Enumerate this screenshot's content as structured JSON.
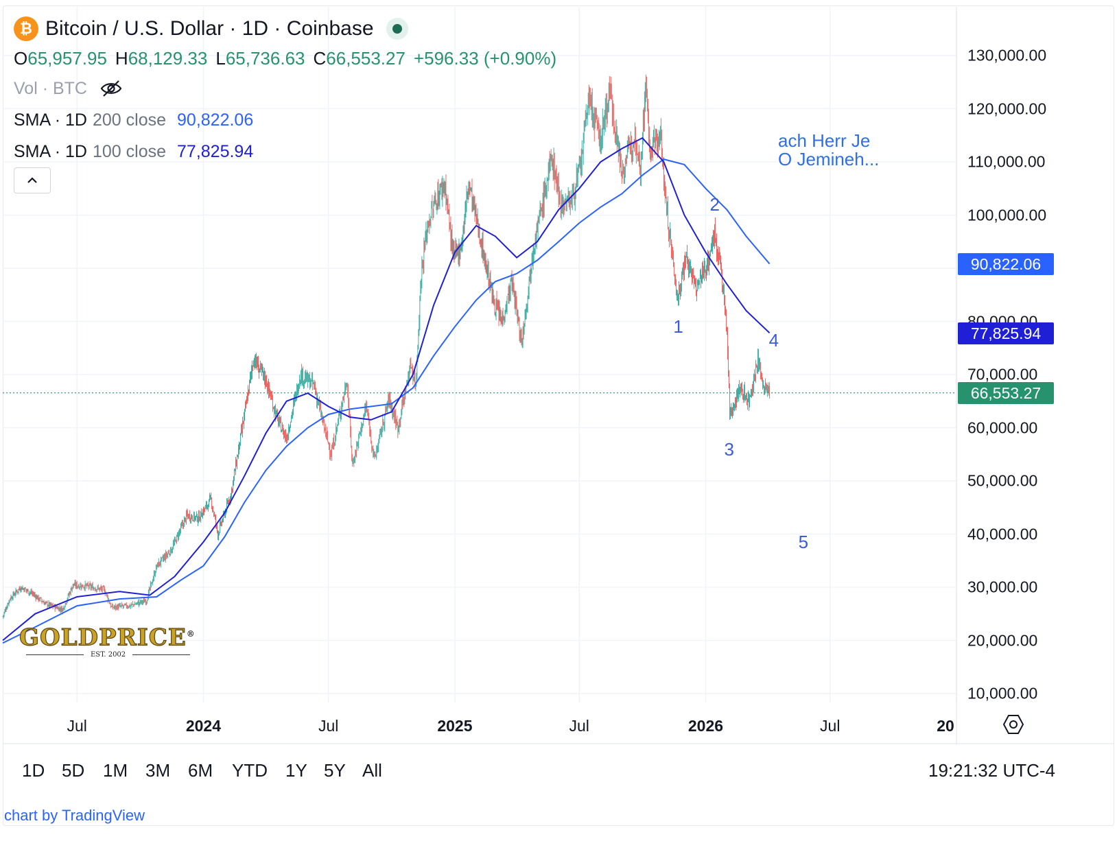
{
  "header": {
    "symbol_badge": "₿",
    "title": "Bitcoin / U.S. Dollar · 1D · Coinbase",
    "ohlc": [
      {
        "key": "O",
        "value": "65,957.95"
      },
      {
        "key": "H",
        "value": "68,129.33"
      },
      {
        "key": "L",
        "value": "65,736.63"
      },
      {
        "key": "C",
        "value": "66,553.27"
      }
    ],
    "change": "+596.33 (+0.90%)",
    "volume_label": "Vol · BTC",
    "sma": [
      {
        "name": "SMA · 1D",
        "params": "200 close",
        "value": "90,822.06",
        "color": "#2962ff"
      },
      {
        "name": "SMA · 1D",
        "params": "100 close",
        "value": "77,825.94",
        "color": "#1f1fd6"
      }
    ]
  },
  "annotations": {
    "text_lines": [
      "ach Herr Je",
      "O Jemineh..."
    ],
    "wave_labels": [
      {
        "text": "1",
        "date": "2025-11-22",
        "price": 79000
      },
      {
        "text": "2",
        "date": "2026-01-14",
        "price": 102000
      },
      {
        "text": "3",
        "date": "2026-02-04",
        "price": 56000
      },
      {
        "text": "4",
        "date": "2026-04-10",
        "price": 76500
      },
      {
        "text": "5",
        "date": "2026-05-23",
        "price": 38500
      }
    ]
  },
  "chart_data": {
    "type": "line",
    "candles": "daily candlesticks, green up / red down",
    "title": "Bitcoin / U.S. Dollar · 1D · Coinbase",
    "x_range": [
      "2023-03-15",
      "2027-01-01"
    ],
    "y_range": [
      8000,
      134000
    ],
    "y_ticks": [
      "130,000.00",
      "120,000.00",
      "110,000.00",
      "100,000.00",
      "80,000.00",
      "70,000.00",
      "60,000.00",
      "50,000.00",
      "40,000.00",
      "30,000.00",
      "20,000.00",
      "10,000.00"
    ],
    "y_tick_values": [
      130000,
      120000,
      110000,
      100000,
      80000,
      70000,
      60000,
      50000,
      40000,
      30000,
      20000,
      10000
    ],
    "x_ticks": [
      {
        "label": "Jul",
        "date": "2023-07-01",
        "bold": false
      },
      {
        "label": "2024",
        "date": "2024-01-01",
        "bold": true
      },
      {
        "label": "Jul",
        "date": "2024-07-01",
        "bold": false
      },
      {
        "label": "2025",
        "date": "2025-01-01",
        "bold": true
      },
      {
        "label": "Jul",
        "date": "2025-07-01",
        "bold": false
      },
      {
        "label": "2026",
        "date": "2026-01-01",
        "bold": true
      },
      {
        "label": "Jul",
        "date": "2026-07-01",
        "bold": false
      },
      {
        "label": "20",
        "date": "2027-01-01",
        "bold": true
      }
    ],
    "last_price": {
      "value": 66553.27,
      "label": "66,553.27",
      "color": "#26936e"
    },
    "series": [
      {
        "name": "BTCUSD",
        "color_up": "#26a69a",
        "color_down": "#ef5350",
        "points": [
          [
            "2023-03-15",
            24500
          ],
          [
            "2023-03-25",
            27800
          ],
          [
            "2023-04-10",
            30000
          ],
          [
            "2023-04-25",
            29000
          ],
          [
            "2023-05-15",
            27000
          ],
          [
            "2023-06-10",
            25800
          ],
          [
            "2023-06-25",
            30400
          ],
          [
            "2023-07-15",
            30200
          ],
          [
            "2023-08-10",
            29500
          ],
          [
            "2023-08-20",
            26200
          ],
          [
            "2023-09-15",
            26500
          ],
          [
            "2023-10-10",
            27500
          ],
          [
            "2023-10-25",
            34000
          ],
          [
            "2023-11-15",
            37000
          ],
          [
            "2023-12-08",
            43500
          ],
          [
            "2023-12-25",
            43000
          ],
          [
            "2024-01-12",
            46500
          ],
          [
            "2024-01-22",
            40000
          ],
          [
            "2024-02-10",
            47500
          ],
          [
            "2024-02-28",
            61000
          ],
          [
            "2024-03-14",
            73000
          ],
          [
            "2024-04-01",
            69000
          ],
          [
            "2024-04-18",
            61500
          ],
          [
            "2024-05-01",
            58000
          ],
          [
            "2024-05-21",
            70000
          ],
          [
            "2024-06-10",
            68000
          ],
          [
            "2024-06-24",
            60500
          ],
          [
            "2024-07-05",
            55000
          ],
          [
            "2024-07-28",
            69000
          ],
          [
            "2024-08-05",
            53000
          ],
          [
            "2024-08-25",
            64000
          ],
          [
            "2024-09-06",
            54000
          ],
          [
            "2024-09-27",
            65500
          ],
          [
            "2024-10-10",
            60000
          ],
          [
            "2024-10-29",
            72000
          ],
          [
            "2024-11-05",
            68000
          ],
          [
            "2024-11-13",
            89000
          ],
          [
            "2024-11-22",
            98000
          ],
          [
            "2024-12-05",
            103000
          ],
          [
            "2024-12-17",
            106000
          ],
          [
            "2024-12-30",
            92000
          ],
          [
            "2025-01-10",
            94000
          ],
          [
            "2025-01-21",
            106000
          ],
          [
            "2025-02-05",
            97000
          ],
          [
            "2025-02-26",
            84000
          ],
          [
            "2025-03-10",
            80000
          ],
          [
            "2025-03-25",
            87500
          ],
          [
            "2025-04-08",
            76000
          ],
          [
            "2025-04-25",
            94000
          ],
          [
            "2025-05-10",
            103000
          ],
          [
            "2025-05-22",
            111000
          ],
          [
            "2025-06-05",
            102000
          ],
          [
            "2025-06-20",
            103000
          ],
          [
            "2025-07-03",
            109000
          ],
          [
            "2025-07-14",
            122000
          ],
          [
            "2025-08-01",
            114000
          ],
          [
            "2025-08-14",
            123500
          ],
          [
            "2025-09-01",
            108000
          ],
          [
            "2025-09-20",
            115500
          ],
          [
            "2025-09-28",
            109000
          ],
          [
            "2025-10-06",
            125500
          ],
          [
            "2025-10-11",
            112000
          ],
          [
            "2025-10-27",
            115000
          ],
          [
            "2025-11-05",
            101000
          ],
          [
            "2025-11-21",
            84000
          ],
          [
            "2025-12-03",
            92500
          ],
          [
            "2025-12-18",
            86000
          ],
          [
            "2026-01-05",
            91500
          ],
          [
            "2026-01-14",
            96500
          ],
          [
            "2026-01-24",
            89000
          ],
          [
            "2026-02-01",
            78000
          ],
          [
            "2026-02-05",
            62500
          ],
          [
            "2026-02-20",
            67500
          ],
          [
            "2026-03-05",
            65000
          ],
          [
            "2026-03-18",
            72500
          ],
          [
            "2026-03-26",
            68000
          ],
          [
            "2026-04-04",
            66553
          ]
        ]
      },
      {
        "name": "SMA 200",
        "color": "#2962ff",
        "points": [
          [
            "2023-03-15",
            19500
          ],
          [
            "2023-05-01",
            22500
          ],
          [
            "2023-07-01",
            26500
          ],
          [
            "2023-09-01",
            27800
          ],
          [
            "2023-10-25",
            28200
          ],
          [
            "2023-12-01",
            31500
          ],
          [
            "2024-01-01",
            34000
          ],
          [
            "2024-02-01",
            39500
          ],
          [
            "2024-03-01",
            46000
          ],
          [
            "2024-04-01",
            52000
          ],
          [
            "2024-05-01",
            56500
          ],
          [
            "2024-06-01",
            60000
          ],
          [
            "2024-07-01",
            62500
          ],
          [
            "2024-08-01",
            63500
          ],
          [
            "2024-09-01",
            64000
          ],
          [
            "2024-10-01",
            64500
          ],
          [
            "2024-11-01",
            67500
          ],
          [
            "2024-12-01",
            73500
          ],
          [
            "2025-01-01",
            79000
          ],
          [
            "2025-02-01",
            84000
          ],
          [
            "2025-03-01",
            87500
          ],
          [
            "2025-04-01",
            89000
          ],
          [
            "2025-05-01",
            91500
          ],
          [
            "2025-06-01",
            95000
          ],
          [
            "2025-07-01",
            98500
          ],
          [
            "2025-08-01",
            101500
          ],
          [
            "2025-09-01",
            104000
          ],
          [
            "2025-10-01",
            107500
          ],
          [
            "2025-11-01",
            110500
          ],
          [
            "2025-12-01",
            109500
          ],
          [
            "2026-01-01",
            105000
          ],
          [
            "2026-02-01",
            101000
          ],
          [
            "2026-03-01",
            96000
          ],
          [
            "2026-04-04",
            90822
          ]
        ]
      },
      {
        "name": "SMA 100",
        "color": "#1f1fd6",
        "points": [
          [
            "2023-03-15",
            20000
          ],
          [
            "2023-05-01",
            25000
          ],
          [
            "2023-07-01",
            28200
          ],
          [
            "2023-09-01",
            29200
          ],
          [
            "2023-10-15",
            28500
          ],
          [
            "2023-11-20",
            32000
          ],
          [
            "2024-01-01",
            38500
          ],
          [
            "2024-02-01",
            44000
          ],
          [
            "2024-03-01",
            51000
          ],
          [
            "2024-04-01",
            59000
          ],
          [
            "2024-05-01",
            65000
          ],
          [
            "2024-06-01",
            66500
          ],
          [
            "2024-07-01",
            64000
          ],
          [
            "2024-08-01",
            62000
          ],
          [
            "2024-09-01",
            61500
          ],
          [
            "2024-10-01",
            63000
          ],
          [
            "2024-11-01",
            70000
          ],
          [
            "2024-12-01",
            83000
          ],
          [
            "2025-01-01",
            93000
          ],
          [
            "2025-02-01",
            98000
          ],
          [
            "2025-03-01",
            96000
          ],
          [
            "2025-04-01",
            92000
          ],
          [
            "2025-05-01",
            95000
          ],
          [
            "2025-06-01",
            101000
          ],
          [
            "2025-07-01",
            105000
          ],
          [
            "2025-08-01",
            110000
          ],
          [
            "2025-09-01",
            112500
          ],
          [
            "2025-10-01",
            114500
          ],
          [
            "2025-11-01",
            110000
          ],
          [
            "2025-12-01",
            100000
          ],
          [
            "2026-01-01",
            93000
          ],
          [
            "2026-02-01",
            87000
          ],
          [
            "2026-03-01",
            82000
          ],
          [
            "2026-04-04",
            77826
          ]
        ]
      }
    ]
  },
  "range_bar": {
    "buttons": [
      "1D",
      "5D",
      "1M",
      "3M",
      "6M",
      "YTD",
      "1Y",
      "5Y",
      "All"
    ],
    "clock": "19:21:32 UTC-4"
  },
  "credit": "chart by TradingView",
  "watermark": {
    "brand": "GOLDPRICE",
    "sub": "EST. 2002",
    "mark": "®"
  }
}
